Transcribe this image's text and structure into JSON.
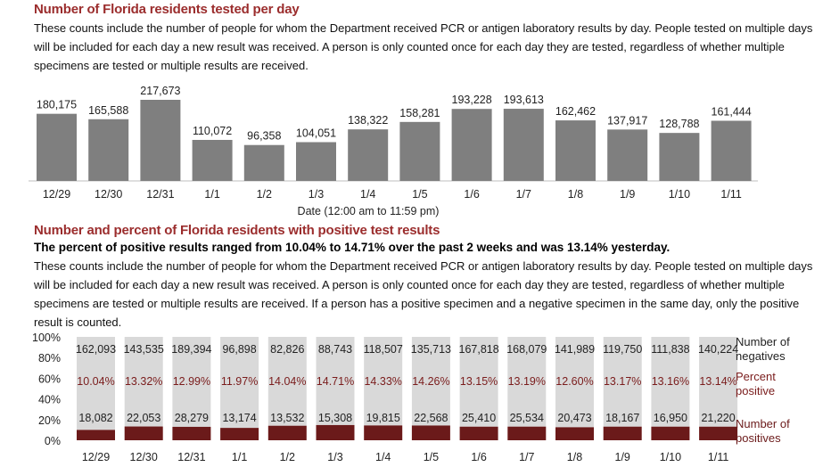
{
  "chart1": {
    "title": "Number of Florida residents tested per day",
    "description": "These counts include the number of people for whom the Department received PCR or antigen laboratory results by day. People tested on multiple days will be included for each day a new result was received. A person is only counted once for each day they are tested, regardless of whether multiple specimens are tested or multiple results are received."
  },
  "chart2": {
    "title": "Number and percent of Florida residents with positive test results",
    "subtitle": "The percent of positive results ranged from 10.04% to 14.71% over the past 2 weeks and was 13.14% yesterday.",
    "description": "These counts include the number of people for whom the Department received PCR or antigen laboratory results by day. People tested on multiple days will be included for each day a new result was received. A person is only counted once for each day they are tested, regardless of whether multiple specimens are tested or multiple results are received. If a person has a positive specimen and a negative specimen in the same day, only the positive result is counted."
  },
  "colors": {
    "title": "#9b2d2d",
    "bar_gray": "#7f7f7f",
    "negatives": "#d9d9d9",
    "positives": "#6b1a1a",
    "percent_text": "#7a1c1c"
  },
  "chart_data": [
    {
      "type": "bar",
      "title": "Number of Florida residents tested per day",
      "xlabel": "Date (12:00 am to 11:59 pm)",
      "ylabel": "",
      "categories": [
        "12/29",
        "12/30",
        "12/31",
        "1/1",
        "1/2",
        "1/3",
        "1/4",
        "1/5",
        "1/6",
        "1/7",
        "1/8",
        "1/9",
        "1/10",
        "1/11"
      ],
      "values": [
        180175,
        165588,
        217673,
        110072,
        96358,
        104051,
        138322,
        158281,
        193228,
        193613,
        162462,
        137917,
        128788,
        161444
      ],
      "value_labels": [
        "180,175",
        "165,588",
        "217,673",
        "110,072",
        "96,358",
        "104,051",
        "138,322",
        "158,281",
        "193,228",
        "193,613",
        "162,462",
        "137,917",
        "128,788",
        "161,444"
      ],
      "ylim": [
        0,
        217673
      ],
      "grid": false
    },
    {
      "type": "bar",
      "stacked": "percent",
      "title": "Number and percent of Florida residents with positive test results",
      "categories": [
        "12/29",
        "12/30",
        "12/31",
        "1/1",
        "1/2",
        "1/3",
        "1/4",
        "1/5",
        "1/6",
        "1/7",
        "1/8",
        "1/9",
        "1/10",
        "1/11"
      ],
      "yticks": [
        "0%",
        "20%",
        "40%",
        "60%",
        "80%",
        "100%"
      ],
      "ylim": [
        0,
        100
      ],
      "grid": false,
      "legend_placement": "right",
      "series": [
        {
          "name": "Number of negatives",
          "values": [
            162093,
            143535,
            189394,
            96898,
            82826,
            88743,
            118507,
            135713,
            167818,
            168079,
            141989,
            119750,
            111838,
            140224
          ],
          "labels": [
            "162,093",
            "143,535",
            "189,394",
            "96,898",
            "82,826",
            "88,743",
            "118,507",
            "135,713",
            "167,818",
            "168,079",
            "141,989",
            "119,750",
            "111,838",
            "140,224"
          ]
        },
        {
          "name": "Number of positives",
          "values": [
            18082,
            22053,
            28279,
            13174,
            13532,
            15308,
            19815,
            22568,
            25410,
            25534,
            20473,
            18167,
            16950,
            21220
          ],
          "labels": [
            "18,082",
            "22,053",
            "28,279",
            "13,174",
            "13,532",
            "15,308",
            "19,815",
            "22,568",
            "25,410",
            "25,534",
            "20,473",
            "18,167",
            "16,950",
            "21,220"
          ]
        }
      ],
      "percent_positive": {
        "name": "Percent positive",
        "values": [
          10.04,
          13.32,
          12.99,
          11.97,
          14.04,
          14.71,
          14.33,
          14.26,
          13.15,
          13.19,
          12.6,
          13.17,
          13.16,
          13.14
        ],
        "labels": [
          "10.04%",
          "13.32%",
          "12.99%",
          "11.97%",
          "14.04%",
          "14.71%",
          "14.33%",
          "14.26%",
          "13.15%",
          "13.19%",
          "12.60%",
          "13.17%",
          "13.16%",
          "13.14%"
        ]
      },
      "legend": {
        "negatives_line1": "Number of",
        "negatives_line2": "negatives",
        "percent_line1": "Percent",
        "percent_line2": "positive",
        "positives_line1": "Number of",
        "positives_line2": "positives"
      }
    }
  ]
}
